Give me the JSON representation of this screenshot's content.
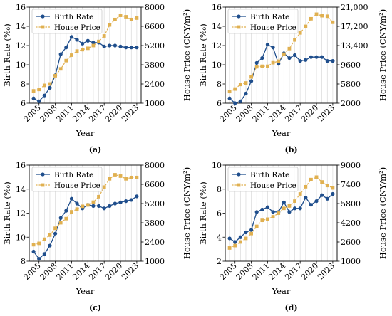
{
  "colors": {
    "birth_rate": "#1f4e8c",
    "house_price": "#e0b050",
    "grid": "#d9d9d9"
  },
  "chart_data": [
    {
      "panel_label": "(a)",
      "type": "line",
      "xlabel": "Year",
      "ylabel_left": "Birth Rate (‰)",
      "ylabel_right": "House Price (CNY/m²)",
      "x_ticks": [
        "2005",
        "2008",
        "2011",
        "2014",
        "2017",
        "2020",
        "2023"
      ],
      "ylim_left": [
        6,
        16
      ],
      "y_ticks_left": [
        6,
        8,
        10,
        12,
        14,
        16
      ],
      "ylim_right": [
        1000,
        8000
      ],
      "y_ticks_right": [
        1000,
        2400,
        3800,
        5200,
        6600,
        8000
      ],
      "grid": "vertical",
      "legend": "upper-left",
      "x": [
        2004,
        2005,
        2006,
        2007,
        2008,
        2009,
        2010,
        2011,
        2012,
        2013,
        2014,
        2015,
        2016,
        2017,
        2018,
        2019,
        2020,
        2021,
        2022,
        2023
      ],
      "series": [
        {
          "name": "Birth Rate",
          "axis": "left",
          "marker": "circle",
          "values": [
            6.5,
            6.2,
            6.8,
            7.6,
            8.9,
            11.1,
            11.8,
            12.9,
            12.6,
            12.2,
            12.5,
            12.3,
            12.3,
            11.9,
            12.0,
            12.0,
            11.9,
            11.8,
            11.8,
            11.8
          ]
        },
        {
          "name": "House Price",
          "axis": "right",
          "marker": "square",
          "values": [
            1900,
            2000,
            2300,
            2400,
            3000,
            3500,
            4100,
            4500,
            4800,
            4900,
            5000,
            5200,
            5500,
            5900,
            6700,
            7100,
            7400,
            7300,
            7100,
            7200
          ]
        }
      ]
    },
    {
      "panel_label": "(b)",
      "type": "line",
      "xlabel": "Year",
      "ylabel_left": "Birth Rate (‰)",
      "ylabel_right": "House Price (CNY/m²)",
      "x_ticks": [
        "2005",
        "2008",
        "2011",
        "2014",
        "2017",
        "2020",
        "2023"
      ],
      "ylim_left": [
        6,
        16
      ],
      "y_ticks_left": [
        6,
        8,
        10,
        12,
        14,
        16
      ],
      "ylim_right": [
        2000,
        21000
      ],
      "y_ticks_right": [
        2000,
        5800,
        9600,
        13400,
        17200,
        21000
      ],
      "grid": "vertical",
      "legend": "upper-left",
      "x": [
        2004,
        2005,
        2006,
        2007,
        2008,
        2009,
        2010,
        2011,
        2012,
        2013,
        2014,
        2015,
        2016,
        2017,
        2018,
        2019,
        2020,
        2021,
        2022,
        2023
      ],
      "series": [
        {
          "name": "Birth Rate",
          "axis": "left",
          "marker": "circle",
          "values": [
            6.5,
            6.0,
            6.2,
            7.0,
            8.3,
            10.2,
            10.7,
            12.1,
            11.8,
            10.1,
            11.2,
            10.7,
            11.0,
            10.4,
            10.5,
            10.8,
            10.8,
            10.8,
            10.4,
            10.4
          ]
        },
        {
          "name": "House Price",
          "axis": "right",
          "marker": "square",
          "values": [
            4300,
            4800,
            5700,
            6000,
            7200,
            9200,
            9300,
            9300,
            10000,
            10300,
            11700,
            12800,
            14500,
            15900,
            17200,
            18700,
            19600,
            19300,
            19200,
            18000
          ]
        }
      ]
    },
    {
      "panel_label": "(c)",
      "type": "line",
      "xlabel": "Year",
      "ylabel_left": "Birth Rate (‰)",
      "ylabel_right": "House Price (CNY/m²)",
      "x_ticks": [
        "2005",
        "2008",
        "2011",
        "2014",
        "2017",
        "2020",
        "2023"
      ],
      "ylim_left": [
        8,
        16
      ],
      "y_ticks_left": [
        8,
        10,
        12,
        14,
        16
      ],
      "ylim_right": [
        1000,
        8000
      ],
      "y_ticks_right": [
        1000,
        2400,
        3800,
        5200,
        6600,
        8000
      ],
      "grid": "vertical",
      "legend": "upper-left",
      "x": [
        2004,
        2005,
        2006,
        2007,
        2008,
        2009,
        2010,
        2011,
        2012,
        2013,
        2014,
        2015,
        2016,
        2017,
        2018,
        2019,
        2020,
        2021,
        2022,
        2023
      ],
      "series": [
        {
          "name": "Birth Rate",
          "axis": "left",
          "marker": "circle",
          "values": [
            8.8,
            8.2,
            8.6,
            9.3,
            10.3,
            11.6,
            12.2,
            13.2,
            12.8,
            12.4,
            12.7,
            12.6,
            12.6,
            12.4,
            12.6,
            12.8,
            12.9,
            13.0,
            13.1,
            13.4
          ]
        },
        {
          "name": "House Price",
          "axis": "right",
          "marker": "square",
          "values": [
            2200,
            2300,
            2600,
            2900,
            3400,
            3800,
            4100,
            4600,
            4800,
            5000,
            5100,
            5300,
            5700,
            6400,
            7000,
            7300,
            7200,
            7000,
            7100,
            7100
          ]
        }
      ]
    },
    {
      "panel_label": "(d)",
      "type": "line",
      "xlabel": "Year",
      "ylabel_left": "Birth Rate (‰)",
      "ylabel_right": "House Price (CNY/m²)",
      "x_ticks": [
        "2005",
        "2008",
        "2011",
        "2014",
        "2017",
        "2020",
        "2023"
      ],
      "ylim_left": [
        2,
        10
      ],
      "y_ticks_left": [
        2,
        4,
        6,
        8,
        10
      ],
      "ylim_right": [
        1000,
        9000
      ],
      "y_ticks_right": [
        1000,
        2600,
        4200,
        5800,
        7400,
        9000
      ],
      "grid": "vertical",
      "legend": "upper-left",
      "x": [
        2004,
        2005,
        2006,
        2007,
        2008,
        2009,
        2010,
        2011,
        2012,
        2013,
        2014,
        2015,
        2016,
        2017,
        2018,
        2019,
        2020,
        2021,
        2022,
        2023
      ],
      "series": [
        {
          "name": "Birth Rate",
          "axis": "left",
          "marker": "circle",
          "values": [
            3.9,
            3.6,
            4.0,
            4.4,
            4.6,
            6.1,
            6.3,
            6.5,
            6.1,
            6.1,
            6.9,
            6.1,
            6.4,
            6.4,
            7.3,
            6.7,
            7.0,
            7.5,
            7.2,
            7.6
          ]
        },
        {
          "name": "House Price",
          "axis": "right",
          "marker": "square",
          "values": [
            2100,
            2300,
            2600,
            2900,
            3300,
            3900,
            4400,
            4500,
            4700,
            5000,
            5400,
            5600,
            6000,
            6600,
            7200,
            7800,
            8000,
            7600,
            7300,
            7100
          ]
        }
      ]
    }
  ]
}
